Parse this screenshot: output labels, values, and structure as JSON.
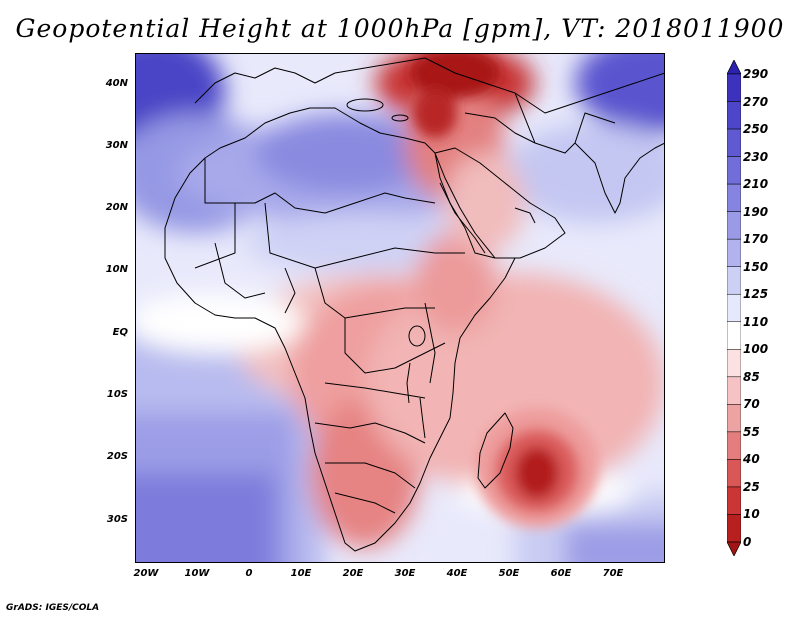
{
  "title": "Geopotential Height at 1000hPa [gpm], VT: 2018011900",
  "credit": "GrADS: IGES/COLA",
  "axes": {
    "y_ticks": [
      "40N",
      "30N",
      "20N",
      "10N",
      "EQ",
      "10S",
      "20S",
      "30S"
    ],
    "x_ticks": [
      "20W",
      "10W",
      "0",
      "10E",
      "20E",
      "30E",
      "40E",
      "50E",
      "60E",
      "70E"
    ]
  },
  "colorbar": {
    "labels": [
      "290",
      "270",
      "250",
      "230",
      "210",
      "190",
      "170",
      "150",
      "125",
      "110",
      "100",
      "85",
      "70",
      "55",
      "40",
      "25",
      "10",
      "0"
    ],
    "colors": [
      "#2b22b0",
      "#3c32bd",
      "#4d46c8",
      "#5f5ad2",
      "#716ed9",
      "#8584e0",
      "#9a9ae7",
      "#b2b3ee",
      "#cdd0f5",
      "#e6e8fb",
      "#ffffff",
      "#fbe1e1",
      "#f5c3c3",
      "#eea3a3",
      "#e47e7e",
      "#d95757",
      "#cb3535",
      "#b82020",
      "#a31414"
    ]
  },
  "map": {
    "region": "Africa and Middle East",
    "lon_range": [
      -20,
      80
    ],
    "lat_range": [
      -35,
      45
    ]
  }
}
